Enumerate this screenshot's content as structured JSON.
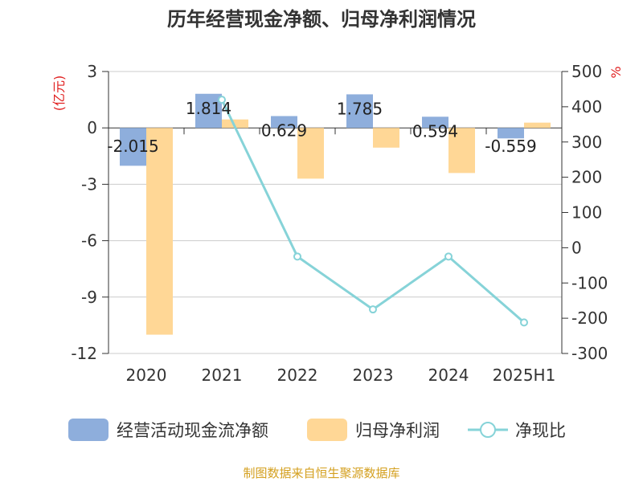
{
  "chart_data": {
    "type": "bar",
    "title": "历年经营现金净额、归母净利润情况",
    "categories": [
      "2020",
      "2021",
      "2022",
      "2023",
      "2024",
      "2025H1"
    ],
    "series": [
      {
        "name": "经营活动现金流净额",
        "type": "bar",
        "axis": "left",
        "color": "#8eaedc",
        "values": [
          -2.015,
          1.814,
          0.629,
          1.785,
          0.594,
          -0.559
        ],
        "labels": [
          "-2.015",
          "1.814",
          "0.629",
          "1.785",
          "0.594",
          "-0.559"
        ]
      },
      {
        "name": "归母净利润",
        "type": "bar",
        "axis": "left",
        "color": "#ffd796",
        "values": [
          -11.0,
          0.45,
          -2.7,
          -1.05,
          -2.4,
          0.28
        ]
      },
      {
        "name": "净现比",
        "type": "line",
        "axis": "right",
        "color": "#86d3d8",
        "values": [
          null,
          420,
          -25,
          -175,
          -25,
          -212
        ]
      }
    ],
    "y_left": {
      "label": "(亿元)",
      "min": -12,
      "max": 3,
      "ticks": [
        3,
        0,
        -3,
        -6,
        -9,
        -12
      ]
    },
    "y_right": {
      "label": "%",
      "min": -300,
      "max": 500,
      "ticks": [
        500,
        400,
        300,
        200,
        100,
        0,
        -100,
        -200,
        -300
      ]
    },
    "grid": true,
    "legend_position": "bottom",
    "source": "制图数据来自恒生聚源数据库"
  }
}
